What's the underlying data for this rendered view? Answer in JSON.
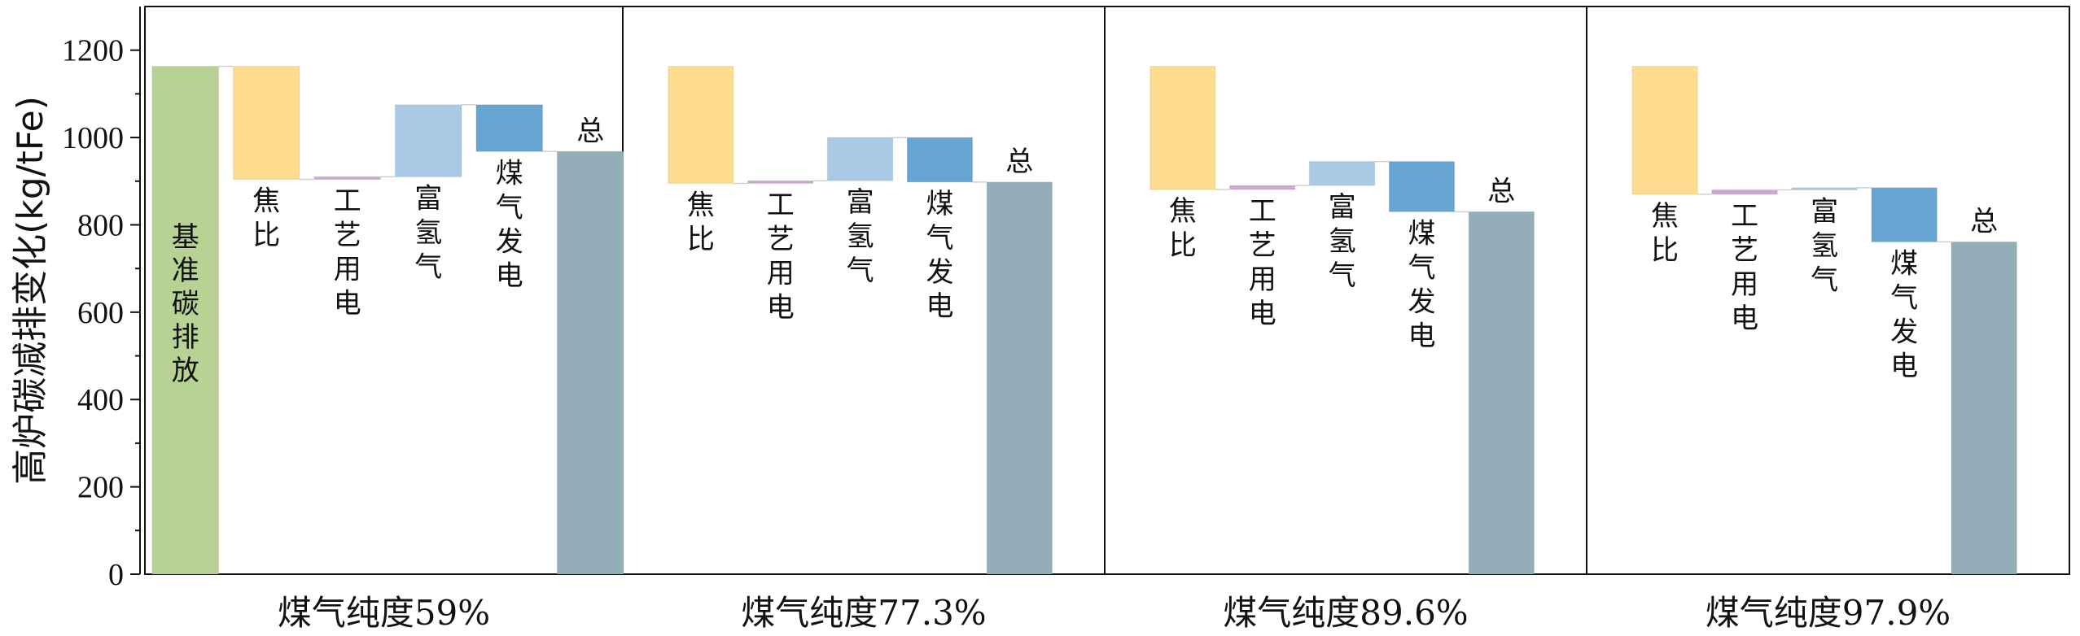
{
  "chart_data": {
    "type": "bar",
    "subtype": "waterfall",
    "title": "",
    "ylabel": "高炉碳减排变化(kg/tFe)",
    "ylim": [
      0,
      1300
    ],
    "yticks": [
      0,
      200,
      400,
      600,
      800,
      1000,
      1200
    ],
    "yticks_labels": [
      "0",
      "200",
      "400",
      "600",
      "800",
      "1000",
      "1200"
    ],
    "grid": false,
    "legend": "none",
    "colors": {
      "基准碳排放": "#b8d293",
      "焦比": "#fddc8f",
      "工艺用电": "#c9a9cf",
      "富氢气": "#a9c9e5",
      "煤气发电": "#66a5d1",
      "总": "#93aeb9"
    },
    "panels": [
      {
        "label": "煤气纯度59%",
        "steps": [
          {
            "name": "基准碳排放",
            "label": "基准碳排放",
            "type": "base",
            "value": 1163
          },
          {
            "name": "焦比",
            "label": "焦比",
            "type": "delta",
            "value": -259
          },
          {
            "name": "工艺用电",
            "label": "工艺用电",
            "type": "delta",
            "value": 6
          },
          {
            "name": "富氢气",
            "label": "富氢气",
            "type": "delta",
            "value": 165
          },
          {
            "name": "煤气发电",
            "label": "煤气发电",
            "type": "delta",
            "value": -107
          },
          {
            "name": "总",
            "label": "总",
            "type": "total",
            "value": 968
          }
        ]
      },
      {
        "label": "煤气纯度77.3%",
        "steps": [
          {
            "name": "焦比",
            "label": "焦比",
            "type": "delta",
            "start": 1163,
            "value": -268
          },
          {
            "name": "工艺用电",
            "label": "工艺用电",
            "type": "delta",
            "value": 6
          },
          {
            "name": "富氢气",
            "label": "富氢气",
            "type": "delta",
            "value": 99
          },
          {
            "name": "煤气发电",
            "label": "煤气发电",
            "type": "delta",
            "value": -102
          },
          {
            "name": "总",
            "label": "总",
            "type": "total",
            "value": 898
          }
        ]
      },
      {
        "label": "煤气纯度89.6%",
        "steps": [
          {
            "name": "焦比",
            "label": "焦比",
            "type": "delta",
            "start": 1163,
            "value": -282
          },
          {
            "name": "工艺用电",
            "label": "工艺用电",
            "type": "delta",
            "value": 9
          },
          {
            "name": "富氢气",
            "label": "富氢气",
            "type": "delta",
            "value": 55
          },
          {
            "name": "煤气发电",
            "label": "煤气发电",
            "type": "delta",
            "value": -115
          },
          {
            "name": "总",
            "label": "总",
            "type": "total",
            "value": 830
          }
        ]
      },
      {
        "label": "煤气纯度97.9%",
        "steps": [
          {
            "name": "焦比",
            "label": "焦比",
            "type": "delta",
            "start": 1163,
            "value": -293
          },
          {
            "name": "工艺用电",
            "label": "工艺用电",
            "type": "delta",
            "value": 10
          },
          {
            "name": "富氢气",
            "label": "富氢气",
            "type": "delta",
            "value": 5
          },
          {
            "name": "煤气发电",
            "label": "煤气发电",
            "type": "delta",
            "value": -124
          },
          {
            "name": "总",
            "label": "总",
            "type": "total",
            "value": 761
          }
        ]
      }
    ]
  }
}
